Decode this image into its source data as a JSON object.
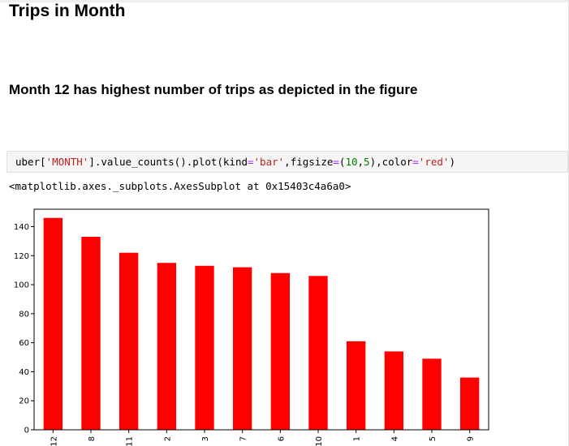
{
  "notebook": {
    "heading": "Trips in Month",
    "subheading": "Month 12 has highest number of trips as depicted in the figure",
    "code": {
      "seg1": "uber[",
      "seg2": "'MONTH'",
      "seg3": "].value_counts().plot(kind",
      "seg4": "=",
      "seg5": "'bar'",
      "seg6": ",figsize",
      "seg7": "=",
      "seg8": "(",
      "seg9": "10",
      "seg10": ",",
      "seg11": "5",
      "seg12": "),color",
      "seg13": "=",
      "seg14": "'red'",
      "seg15": ")"
    },
    "output": "<matplotlib.axes._subplots.AxesSubplot at 0x15403c4a6a0>"
  },
  "chart_data": {
    "type": "bar",
    "categories": [
      "12",
      "8",
      "11",
      "2",
      "3",
      "7",
      "6",
      "10",
      "1",
      "4",
      "5",
      "9"
    ],
    "values": [
      146,
      133,
      122,
      115,
      113,
      112,
      108,
      106,
      61,
      54,
      49,
      36
    ],
    "color": "#ff0000",
    "ylim": [
      0,
      152
    ],
    "yticks": [
      0,
      20,
      40,
      60,
      80,
      100,
      120,
      140
    ],
    "grid": false
  }
}
